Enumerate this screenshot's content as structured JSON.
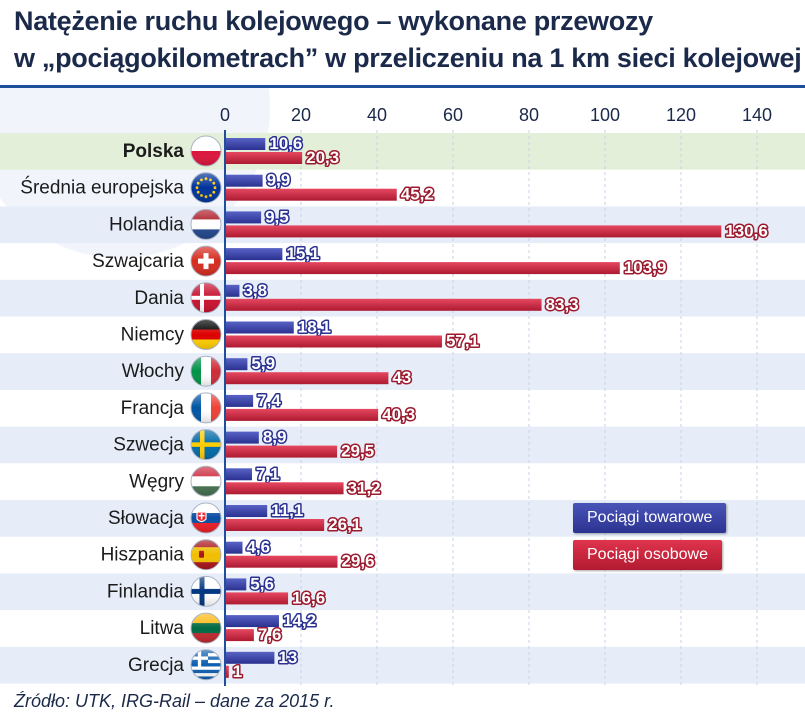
{
  "title": {
    "line1": "Natężenie ruchu kolejowego – wykonane przewozy",
    "line2": "w „pociągokilometrach” w przeliczeniu na 1 km sieci kolejowej"
  },
  "source": "Źródło: UTK, IRG-Rail – dane za 2015 r.",
  "colors": {
    "freight": "#3a44a8",
    "passenger": "#d12a42",
    "highlight_row": "#e3efd9",
    "band": "#e6edf8",
    "axis": "#1f4f9b",
    "text": "#1b2a4a"
  },
  "chart_data": {
    "type": "bar",
    "orientation": "horizontal",
    "title": "Natężenie ruchu kolejowego – wykonane przewozy w „pociągokilometrach” w przeliczeniu na 1 km sieci kolejowej",
    "xlim": [
      0,
      140
    ],
    "xticks": [
      0,
      20,
      40,
      60,
      80,
      100,
      120,
      140
    ],
    "categories": [
      "Polska",
      "Średnia europejska",
      "Holandia",
      "Szwajcaria",
      "Dania",
      "Niemcy",
      "Włochy",
      "Francja",
      "Szwecja",
      "Węgry",
      "Słowacja",
      "Hiszpania",
      "Finlandia",
      "Litwa",
      "Grecja"
    ],
    "flags": [
      "flag-poland",
      "flag-eu",
      "flag-netherlands",
      "flag-switzerland",
      "flag-denmark",
      "flag-germany",
      "flag-italy",
      "flag-france",
      "flag-sweden",
      "flag-hungary",
      "flag-slovakia",
      "flag-spain",
      "flag-finland",
      "flag-lithuania",
      "flag-greece"
    ],
    "highlight": "Polska",
    "series": [
      {
        "name": "Pociągi towarowe",
        "values": [
          10.6,
          9.9,
          9.5,
          15.1,
          3.8,
          18.1,
          5.9,
          7.4,
          8.9,
          7.1,
          11.1,
          4.6,
          5.6,
          14.2,
          13
        ],
        "labels": [
          "10,6",
          "9,9",
          "9,5",
          "15,1",
          "3,8",
          "18,1",
          "5,9",
          "7,4",
          "8,9",
          "7,1",
          "11,1",
          "4,6",
          "5,6",
          "14,2",
          "13"
        ]
      },
      {
        "name": "Pociągi osobowe",
        "values": [
          20.3,
          45.2,
          130.6,
          103.9,
          83.3,
          57.1,
          43,
          40.3,
          29.5,
          31.2,
          26.1,
          29.6,
          16.6,
          7.6,
          1
        ],
        "labels": [
          "20,3",
          "45,2",
          "130,6",
          "103,9",
          "83,3",
          "57,1",
          "43",
          "40,3",
          "29,5",
          "31,2",
          "26,1",
          "29,6",
          "16,6",
          "7,6",
          "1"
        ]
      }
    ],
    "legend": {
      "position": "right",
      "items": [
        "Pociągi towarowe",
        "Pociągi osobowe"
      ]
    }
  }
}
